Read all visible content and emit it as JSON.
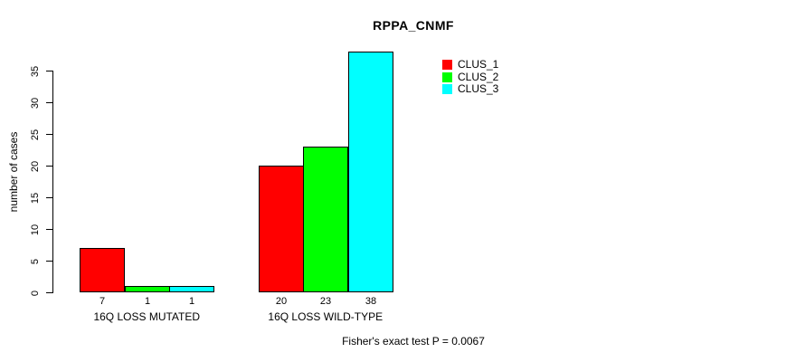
{
  "chart_data": {
    "type": "bar",
    "title": "RPPA_CNMF",
    "xlabel": "",
    "ylabel": "number of cases",
    "categories": [
      "16Q LOSS MUTATED",
      "16Q LOSS WILD-TYPE"
    ],
    "series": [
      {
        "name": "CLUS_1",
        "color": "#ff0000",
        "values": [
          7,
          20
        ]
      },
      {
        "name": "CLUS_2",
        "color": "#00ff00",
        "values": [
          1,
          23
        ]
      },
      {
        "name": "CLUS_3",
        "color": "#00ffff",
        "values": [
          1,
          38
        ]
      }
    ],
    "bar_value_labels": [
      [
        "7",
        "1",
        "1"
      ],
      [
        "20",
        "23",
        "38"
      ]
    ],
    "yticks": [
      0,
      5,
      10,
      15,
      20,
      25,
      30,
      35
    ],
    "ylim": [
      0,
      38
    ],
    "grid": false,
    "legend_position": "top-right",
    "annotation": "Fisher's exact test P = 0.0067"
  },
  "colors": {
    "background": "#ffffff",
    "axis": "#000000",
    "bar_border": "#000000",
    "clus_1": "#ff0000",
    "clus_2": "#00ff00",
    "clus_3": "#00ffff"
  }
}
